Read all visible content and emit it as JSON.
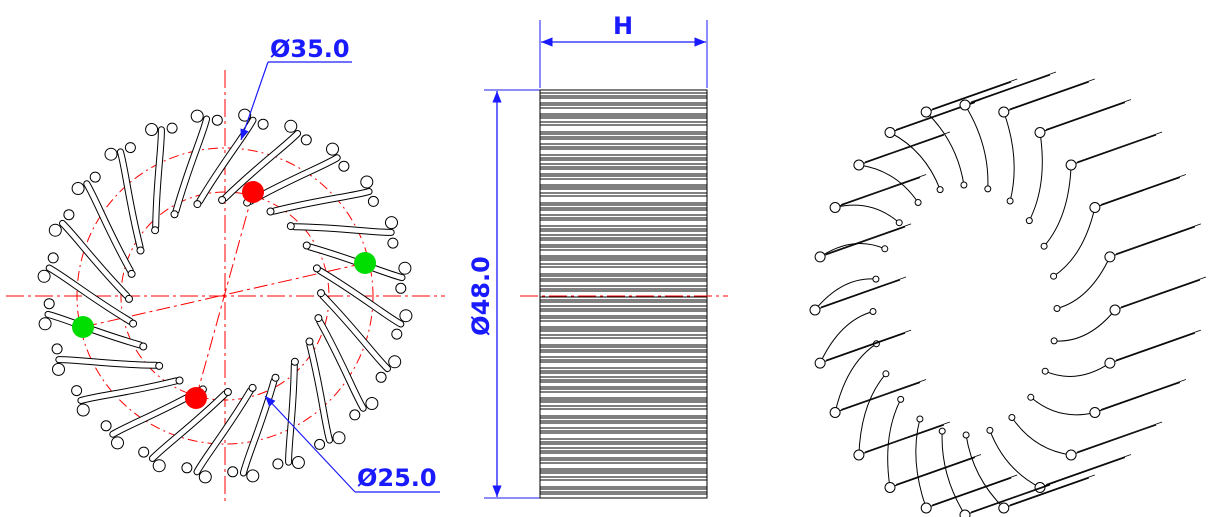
{
  "drawing": {
    "front_view": {
      "dim_outer_circle": "Ø35.0",
      "dim_inner_circle": "Ø25.0",
      "mount_holes": [
        {
          "color": "#ff0000"
        },
        {
          "color": "#ff0000"
        },
        {
          "color": "#00dd00"
        },
        {
          "color": "#00dd00"
        }
      ]
    },
    "side_view": {
      "dim_height": "H",
      "dim_diameter": "Ø48.0"
    },
    "colors": {
      "dimension": "#1a1aff",
      "centerline": "#ff0000",
      "outline": "#000000"
    }
  }
}
